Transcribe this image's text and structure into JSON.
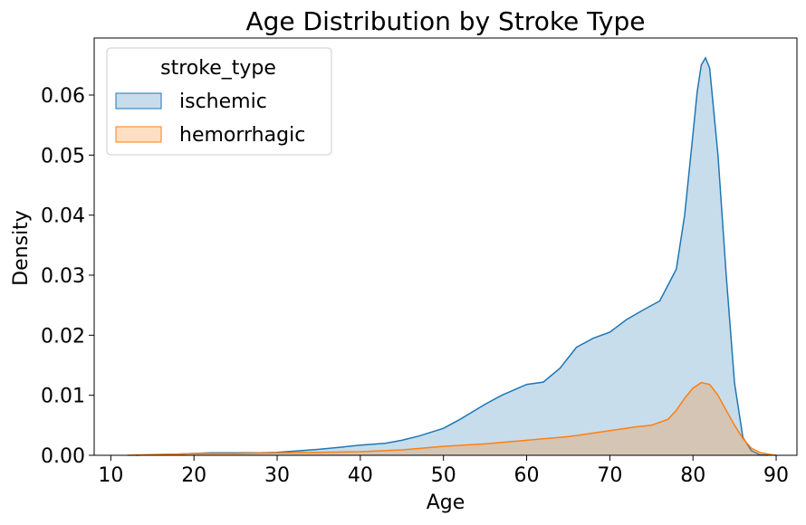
{
  "chart_data": {
    "type": "area",
    "title": "Age Distribution by Stroke Type",
    "xlabel": "Age",
    "ylabel": "Density",
    "xlim": [
      8,
      92.5
    ],
    "ylim": [
      0,
      0.0695
    ],
    "xticks": [
      10,
      20,
      30,
      40,
      50,
      60,
      70,
      80,
      90
    ],
    "yticks": [
      0.0,
      0.01,
      0.02,
      0.03,
      0.04,
      0.05,
      0.06
    ],
    "ytick_labels": [
      "0.00",
      "0.01",
      "0.02",
      "0.03",
      "0.04",
      "0.05",
      "0.06"
    ],
    "grid": false,
    "legend": {
      "title": "stroke_type",
      "placement": "top-left"
    },
    "series": [
      {
        "name": "ischemic",
        "color": "#1f77b4",
        "fill_opacity": 0.25,
        "x": [
          13,
          15,
          18,
          20,
          22,
          25,
          28,
          30,
          33,
          35,
          38,
          40,
          43,
          45,
          47,
          50,
          52,
          55,
          57,
          60,
          62,
          64,
          66,
          68,
          70,
          72,
          74,
          76,
          78,
          79,
          80,
          80.5,
          81,
          81.5,
          82,
          83,
          84,
          85,
          86,
          87,
          88,
          89
        ],
        "y": [
          0.0,
          0.0001,
          0.0002,
          0.0003,
          0.0004,
          0.0004,
          0.0004,
          0.0005,
          0.0008,
          0.001,
          0.0014,
          0.0017,
          0.002,
          0.0025,
          0.0032,
          0.0045,
          0.006,
          0.0085,
          0.01,
          0.0118,
          0.0122,
          0.0145,
          0.018,
          0.0195,
          0.0205,
          0.0226,
          0.0242,
          0.0257,
          0.031,
          0.04,
          0.0535,
          0.0605,
          0.065,
          0.0662,
          0.0645,
          0.05,
          0.03,
          0.012,
          0.003,
          0.0008,
          0.0001,
          0.0
        ]
      },
      {
        "name": "hemorrhagic",
        "color": "#ff7f0e",
        "fill_opacity": 0.25,
        "x": [
          12,
          15,
          18,
          20,
          25,
          30,
          35,
          40,
          45,
          50,
          55,
          60,
          65,
          70,
          73,
          75,
          77,
          78,
          79,
          80,
          81,
          82,
          83,
          84,
          85,
          86,
          87,
          88,
          89,
          90
        ],
        "y": [
          0.0,
          0.0001,
          0.0002,
          0.0003,
          0.0003,
          0.0004,
          0.0005,
          0.0006,
          0.0009,
          0.0015,
          0.0019,
          0.0025,
          0.0031,
          0.0041,
          0.0047,
          0.005,
          0.006,
          0.0075,
          0.0095,
          0.0112,
          0.0121,
          0.0118,
          0.01,
          0.0075,
          0.005,
          0.0028,
          0.0012,
          0.0005,
          0.0002,
          0.0
        ]
      }
    ]
  }
}
